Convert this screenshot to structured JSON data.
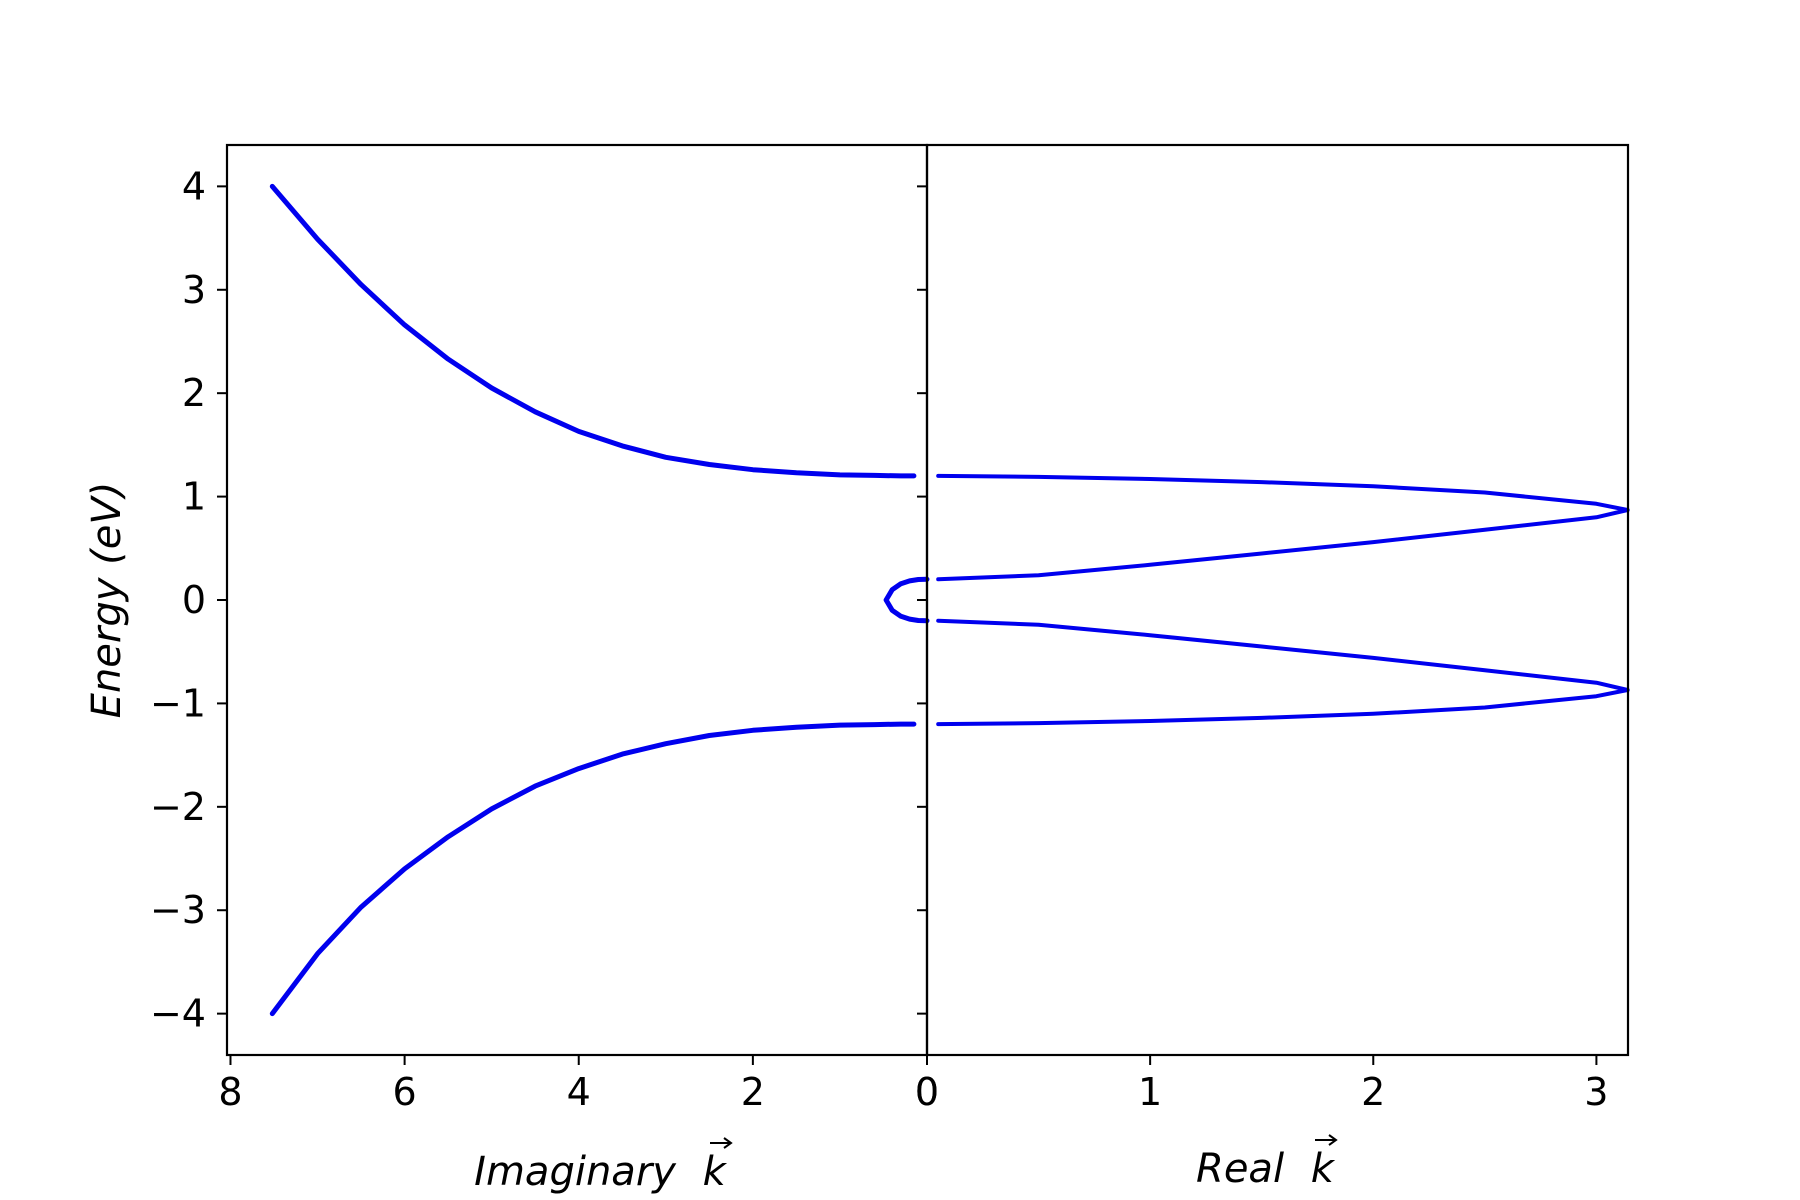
{
  "chart_data": {
    "type": "line",
    "title": "",
    "ylabel": "Energy  (eV)",
    "ylim": [
      -4.4,
      4.4
    ],
    "yticks": [
      -4,
      -3,
      -2,
      -1,
      0,
      1,
      2,
      3,
      4
    ],
    "ytick_labels": [
      "−4",
      "−3",
      "−2",
      "−1",
      "0",
      "1",
      "2",
      "3",
      "4"
    ],
    "line_color": "#0000ee",
    "panels": [
      {
        "name": "imaginary",
        "xlabel": "Imaginary",
        "xlabel_symbol": "k",
        "xlim": [
          8.04,
          0
        ],
        "xticks": [
          8,
          6,
          4,
          2,
          0
        ],
        "xtick_labels": [
          "8",
          "6",
          "4",
          "2",
          "0"
        ],
        "series": [
          {
            "name": "upper-evanescent-band",
            "x": [
              7.52,
              7.0,
              6.5,
              6.0,
              5.5,
              5.0,
              4.5,
              4.0,
              3.5,
              3.0,
              2.5,
              2.0,
              1.5,
              1.0,
              0.6,
              0.3,
              0.15
            ],
            "y": [
              4.0,
              3.49,
              3.05,
              2.66,
              2.33,
              2.05,
              1.82,
              1.63,
              1.49,
              1.38,
              1.31,
              1.26,
              1.23,
              1.21,
              1.205,
              1.2,
              1.2
            ]
          },
          {
            "name": "lower-evanescent-band",
            "x": [
              7.52,
              7.0,
              6.5,
              6.0,
              5.5,
              5.0,
              4.5,
              4.0,
              3.5,
              3.0,
              2.5,
              2.0,
              1.5,
              1.0,
              0.6,
              0.3,
              0.15
            ],
            "y": [
              -4.0,
              -3.42,
              -2.97,
              -2.6,
              -2.29,
              -2.02,
              -1.8,
              -1.63,
              -1.49,
              -1.39,
              -1.31,
              -1.26,
              -1.23,
              -1.21,
              -1.205,
              -1.2,
              -1.2
            ]
          },
          {
            "name": "gap-loop",
            "x": [
              0.0,
              0.1,
              0.2,
              0.3,
              0.4,
              0.47,
              0.4,
              0.3,
              0.2,
              0.1,
              0.0
            ],
            "y": [
              0.2,
              0.198,
              0.185,
              0.158,
              0.1,
              0.0,
              -0.1,
              -0.158,
              -0.185,
              -0.198,
              -0.2
            ]
          }
        ]
      },
      {
        "name": "real",
        "xlabel": "Real",
        "xlabel_symbol": "k",
        "xlim": [
          0,
          3.1416
        ],
        "xticks": [
          0,
          1,
          2,
          3
        ],
        "xtick_labels": [
          "0",
          "1",
          "2",
          "3"
        ],
        "series": [
          {
            "name": "band-1",
            "x": [
              0.05,
              0.5,
              1.0,
              1.5,
              2.0,
              2.5,
              3.0,
              3.14
            ],
            "y": [
              1.2,
              1.19,
              1.17,
              1.14,
              1.1,
              1.04,
              0.93,
              0.87
            ]
          },
          {
            "name": "band-2",
            "x": [
              0.05,
              0.5,
              1.0,
              1.5,
              2.0,
              2.5,
              3.0,
              3.14
            ],
            "y": [
              0.2,
              0.24,
              0.34,
              0.45,
              0.56,
              0.68,
              0.8,
              0.87
            ]
          },
          {
            "name": "band-3",
            "x": [
              0.05,
              0.5,
              1.0,
              1.5,
              2.0,
              2.5,
              3.0,
              3.14
            ],
            "y": [
              -0.2,
              -0.24,
              -0.34,
              -0.45,
              -0.56,
              -0.68,
              -0.8,
              -0.87
            ]
          },
          {
            "name": "band-4",
            "x": [
              0.05,
              0.5,
              1.0,
              1.5,
              2.0,
              2.5,
              3.0,
              3.14
            ],
            "y": [
              -1.2,
              -1.19,
              -1.17,
              -1.14,
              -1.1,
              -1.04,
              -0.93,
              -0.87
            ]
          }
        ]
      }
    ]
  }
}
